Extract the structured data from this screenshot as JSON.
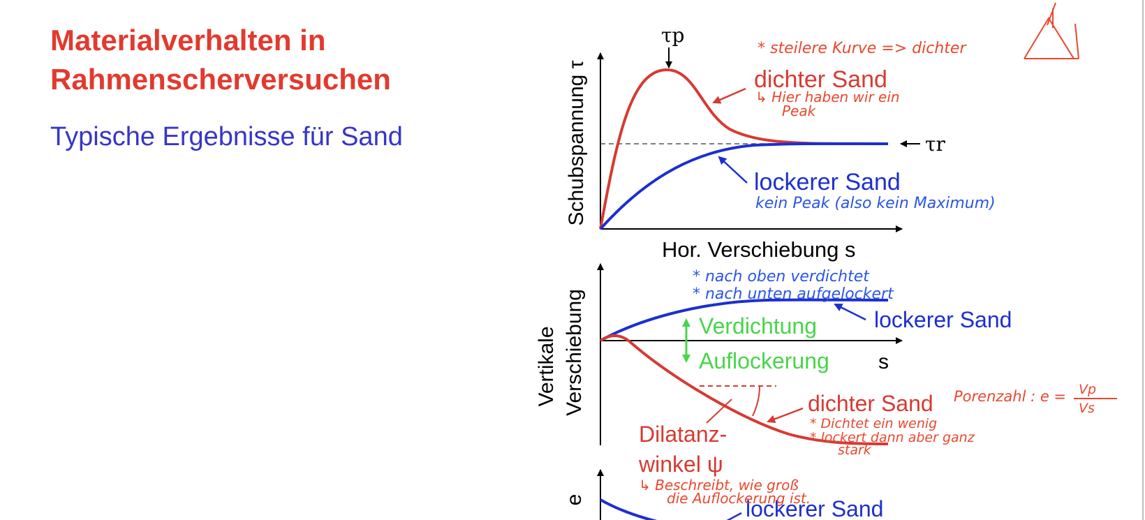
{
  "slide": {
    "title_line1": "Materialverhalten in",
    "title_line2": "Rahmenscherversuchen",
    "subtitle": "Typische Ergebnisse für Sand"
  },
  "colors": {
    "title": "#e23a2e",
    "subtitle": "#3636c8",
    "dense": "#d63a32",
    "loose": "#1c2fd0",
    "change": "#49d44b",
    "pen_red": "#e8472e",
    "pen_blue": "#2a55e6"
  },
  "diagram": {
    "top_panel": {
      "y_axis_label": "Schubspannung τ",
      "x_axis_label": "Hor. Verschiebung s",
      "peak_label": "τp",
      "residual_label": "τr",
      "dense_label": "dichter Sand",
      "loose_label": "lockerer Sand"
    },
    "middle_panel": {
      "y_axis_label_1": "Vertikale",
      "y_axis_label_2": "Verschiebung",
      "x_axis_label": "s",
      "compaction_label": "Verdichtung",
      "loosening_label": "Auflockerung",
      "loose_label": "lockerer Sand",
      "dense_label": "dichter Sand",
      "dilatancy_label_1": "Dilatanz-",
      "dilatancy_label_2": "winkel ψ"
    },
    "bottom_panel": {
      "y_axis_label": "e",
      "loose_label": "lockerer Sand"
    }
  },
  "annotations": {
    "steep_curve": "* steilere Kurve => dichter",
    "peak_note_1": "↳ Hier haben wir ein",
    "peak_note_2": "Peak",
    "no_peak": "kein Peak (also kein Maximum)",
    "up_compacted": "* nach oben verdichtet",
    "down_loosened": "* nach unten aufgelockert",
    "porosity_label": "Porenzahl : e =",
    "porosity_num": "Vp",
    "porosity_den": "Vs",
    "dense_note_1": "* Dichtet ein wenig",
    "dense_note_2": "* lockert dann aber ganz",
    "dense_note_3": "stark",
    "dilatancy_note_1": "↳ Beschreibt, wie groß",
    "dilatancy_note_2": "die Auflockerung ist."
  }
}
